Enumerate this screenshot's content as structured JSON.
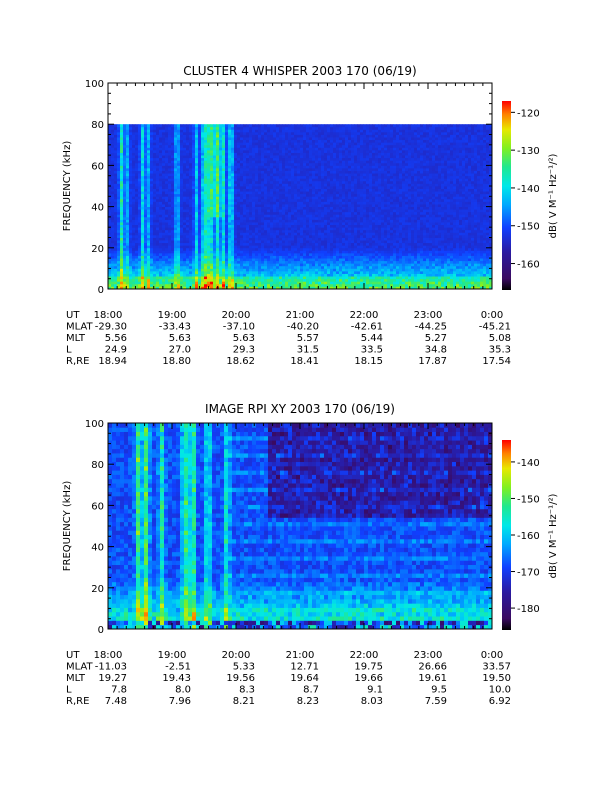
{
  "chart_data": [
    {
      "type": "heatmap",
      "title": "CLUSTER 4 WHISPER 2003 170 (06/19)",
      "ylabel": "FREQUENCY (kHz)",
      "ylim": [
        0,
        100
      ],
      "yticks": [
        "0",
        "20",
        "40",
        "60",
        "80",
        "100"
      ],
      "data_max_khz": 80,
      "colorbar": {
        "label": "dB( V M⁻¹ Hz⁻¹/²)",
        "range": [
          -167,
          -117
        ],
        "ticks": [
          "-120",
          "-130",
          "-140",
          "-150",
          "-160"
        ]
      },
      "ephemeris": {
        "row_labels": [
          "UT",
          "MLAT",
          "MLT",
          "L",
          "R,RE"
        ],
        "rows": [
          [
            "18:00",
            "19:00",
            "20:00",
            "21:00",
            "22:00",
            "23:00",
            "0:00"
          ],
          [
            "-29.30",
            "-33.43",
            "-37.10",
            "-40.20",
            "-42.61",
            "-44.25",
            "-45.21"
          ],
          [
            "5.56",
            "5.63",
            "5.63",
            "5.57",
            "5.44",
            "5.27",
            "5.08"
          ],
          [
            "24.9",
            "27.0",
            "29.3",
            "31.5",
            "33.5",
            "34.8",
            "35.3"
          ],
          [
            "18.94",
            "18.80",
            "18.62",
            "18.41",
            "18.15",
            "17.87",
            "17.54"
          ]
        ]
      }
    },
    {
      "type": "heatmap",
      "title": "IMAGE RPI XY 2003 170 (06/19)",
      "ylabel": "FREQUENCY (kHz)",
      "ylim": [
        0,
        100
      ],
      "yticks": [
        "0",
        "20",
        "40",
        "60",
        "80",
        "100"
      ],
      "colorbar": {
        "label": "dB( V M⁻¹ Hz⁻¹/²)",
        "range": [
          -186,
          -134
        ],
        "ticks": [
          "-140",
          "-150",
          "-160",
          "-170",
          "-180"
        ]
      },
      "ephemeris": {
        "row_labels": [
          "UT",
          "MLAT",
          "MLT",
          "L",
          "R,RE"
        ],
        "rows": [
          [
            "18:00",
            "19:00",
            "20:00",
            "21:00",
            "22:00",
            "23:00",
            "0:00"
          ],
          [
            "-11.03",
            "-2.51",
            "5.33",
            "12.71",
            "19.75",
            "26.66",
            "33.57"
          ],
          [
            "19.27",
            "19.43",
            "19.56",
            "19.64",
            "19.66",
            "19.61",
            "19.50"
          ],
          [
            "7.8",
            "8.0",
            "8.3",
            "8.7",
            "9.1",
            "9.5",
            "10.0"
          ],
          [
            "7.48",
            "7.96",
            "8.21",
            "8.23",
            "8.03",
            "7.59",
            "6.92"
          ]
        ]
      }
    }
  ]
}
